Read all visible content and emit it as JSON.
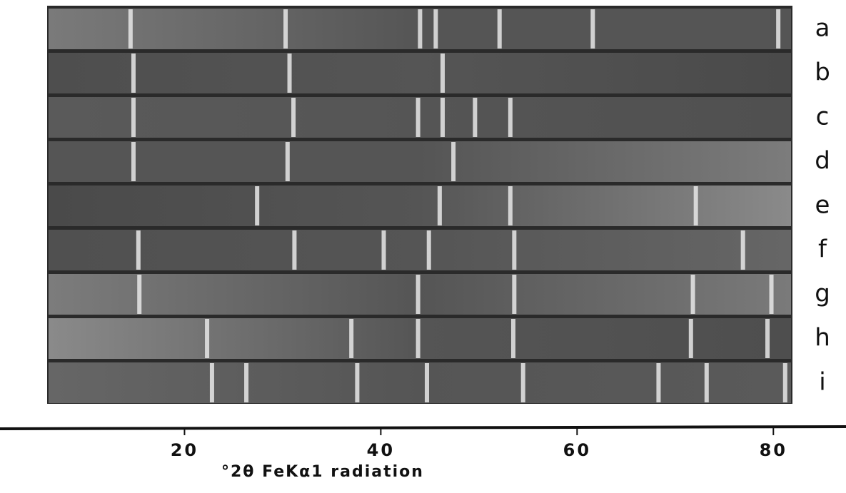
{
  "axis": {
    "label": "°2θ FeKα1 radiation",
    "xlim": [
      1.2,
      87.4
    ],
    "ticks": [
      20,
      40,
      60,
      80
    ]
  },
  "strips": [
    {
      "label": "a",
      "lines": [
        14.5,
        30.3,
        44.0,
        45.6,
        52.1,
        61.6,
        80.5
      ]
    },
    {
      "label": "b",
      "lines": [
        14.8,
        30.7,
        46.3
      ]
    },
    {
      "label": "c",
      "lines": [
        14.8,
        31.1,
        43.8,
        46.3,
        49.6,
        53.2
      ]
    },
    {
      "label": "d",
      "lines": [
        14.8,
        30.5,
        47.4
      ]
    },
    {
      "label": "e",
      "lines": [
        27.4,
        46.0,
        53.2,
        72.1
      ]
    },
    {
      "label": "f",
      "lines": [
        15.3,
        31.2,
        40.3,
        44.9,
        53.6,
        76.9
      ]
    },
    {
      "label": "g",
      "lines": [
        15.4,
        43.8,
        53.6,
        71.8,
        79.8
      ]
    },
    {
      "label": "h",
      "lines": [
        22.3,
        37.0,
        43.8,
        53.5,
        71.6,
        79.4
      ]
    },
    {
      "label": "i",
      "lines": [
        22.8,
        26.3,
        37.6,
        44.7,
        54.5,
        68.3,
        73.2,
        81.2
      ]
    }
  ]
}
